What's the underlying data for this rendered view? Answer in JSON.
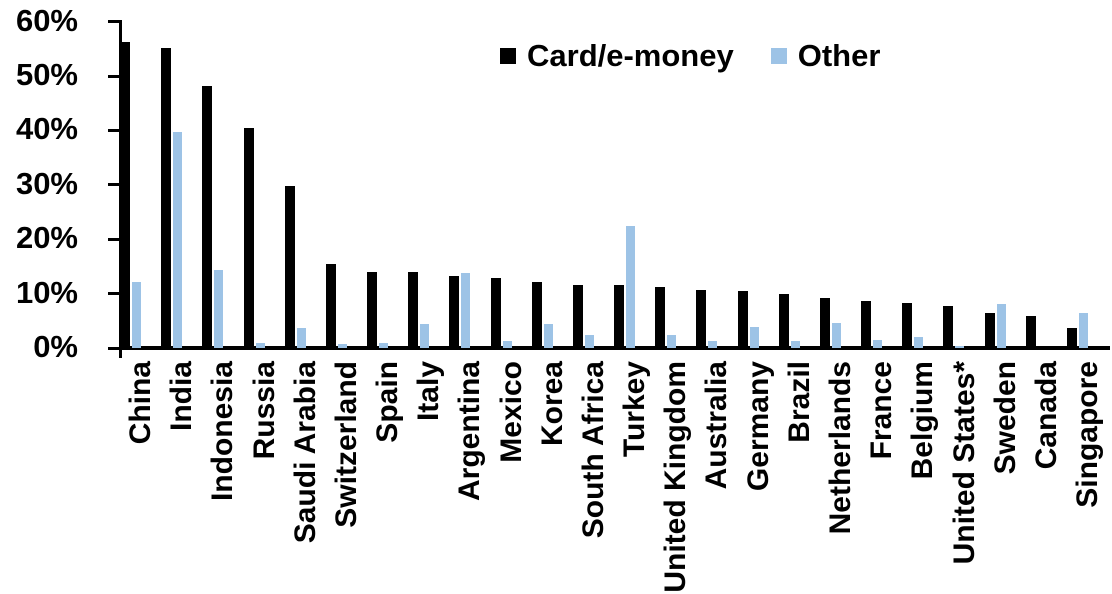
{
  "chart_data": {
    "type": "bar",
    "title": "",
    "xlabel": "",
    "ylabel": "",
    "ylim": [
      0,
      60
    ],
    "y_tick_values": [
      0,
      10,
      20,
      30,
      40,
      50,
      60
    ],
    "y_tick_labels": [
      "0%",
      "10%",
      "20%",
      "30%",
      "40%",
      "50%",
      "60%"
    ],
    "grid": false,
    "legend_position": "top-center",
    "categories": [
      "China",
      "India",
      "Indonesia",
      "Russia",
      "Saudi Arabia",
      "Switzerland",
      "Spain",
      "Italy",
      "Argentina",
      "Mexico",
      "Korea",
      "South Africa",
      "Turkey",
      "United Kingdom",
      "Australia",
      "Germany",
      "Brazil",
      "Netherlands",
      "France",
      "Belgium",
      "United States*",
      "Sweden",
      "Canada",
      "Singapore"
    ],
    "series": [
      {
        "name": "Card/e-money",
        "color": "#000000",
        "values": [
          56.3,
          55.1,
          48.2,
          40.5,
          29.7,
          15.5,
          14.0,
          13.9,
          13.2,
          12.9,
          12.1,
          11.6,
          11.5,
          11.2,
          10.7,
          10.5,
          10.0,
          9.2,
          8.6,
          8.2,
          7.8,
          6.4,
          5.8,
          3.7
        ]
      },
      {
        "name": "Other",
        "color": "#9DC3E6",
        "values": [
          12.2,
          39.7,
          14.3,
          0.9,
          3.6,
          0.7,
          0.9,
          4.5,
          13.8,
          1.2,
          4.5,
          2.3,
          22.4,
          2.3,
          1.2,
          3.8,
          1.2,
          4.6,
          1.5,
          2.0,
          0.3,
          8.0,
          0,
          6.5
        ]
      }
    ]
  },
  "legend": {
    "card_label": "Card/e-money",
    "other_label": "Other"
  }
}
